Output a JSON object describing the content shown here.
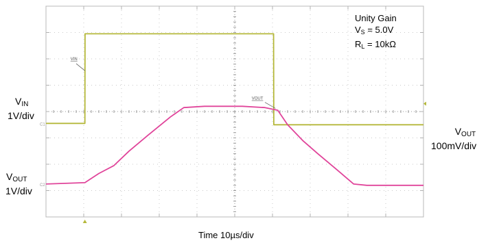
{
  "chart_data": {
    "type": "line",
    "title": "",
    "xlabel": "Time 10µs/div",
    "ylabel": "",
    "grid": true,
    "grid_divisions": {
      "x": 10,
      "y": 8
    },
    "x_unit": "µs",
    "xlim": [
      0,
      100
    ],
    "annotation": {
      "line1": "Unity Gain",
      "vs_sym": "V",
      "vs_sub": "S",
      "vs_val": "= 5.0V",
      "rl_sym": "R",
      "rl_sub": "L",
      "rl_val": "= 10kΩ"
    },
    "left_labels": {
      "vin_sym": "V",
      "vin_sub": "IN",
      "vin_scale": "1V/div",
      "vout_sym": "V",
      "vout_sub": "OUT",
      "vout_scale": "1V/div"
    },
    "right_labels": {
      "vout_sym": "V",
      "vout_sub": "OUT",
      "vout_scale": "100mV/div"
    },
    "trace_tags": {
      "vin": "VIN",
      "vout": "VOUT"
    },
    "channel_markers": {
      "ch1": "C1",
      "ch2": "C2"
    },
    "series": [
      {
        "name": "VIN",
        "color": "#b5b83a",
        "points": [
          [
            0,
            -0.45
          ],
          [
            10.3,
            -0.45
          ],
          [
            10.35,
            2.95
          ],
          [
            60.3,
            2.95
          ],
          [
            60.35,
            -0.5
          ],
          [
            100,
            -0.5
          ]
        ]
      },
      {
        "name": "VOUT",
        "color": "#e0449a",
        "points": [
          [
            0,
            -2.75
          ],
          [
            10.3,
            -2.7
          ],
          [
            14,
            -2.35
          ],
          [
            18,
            -2.05
          ],
          [
            22,
            -1.5
          ],
          [
            27,
            -0.9
          ],
          [
            33,
            -0.2
          ],
          [
            36.5,
            0.15
          ],
          [
            42,
            0.2
          ],
          [
            52,
            0.2
          ],
          [
            58,
            0.15
          ],
          [
            61.4,
            0.05
          ],
          [
            64,
            -0.5
          ],
          [
            68,
            -1.1
          ],
          [
            72,
            -1.6
          ],
          [
            77,
            -2.2
          ],
          [
            81.5,
            -2.75
          ],
          [
            85,
            -2.8
          ],
          [
            100,
            -2.8
          ]
        ]
      }
    ]
  }
}
